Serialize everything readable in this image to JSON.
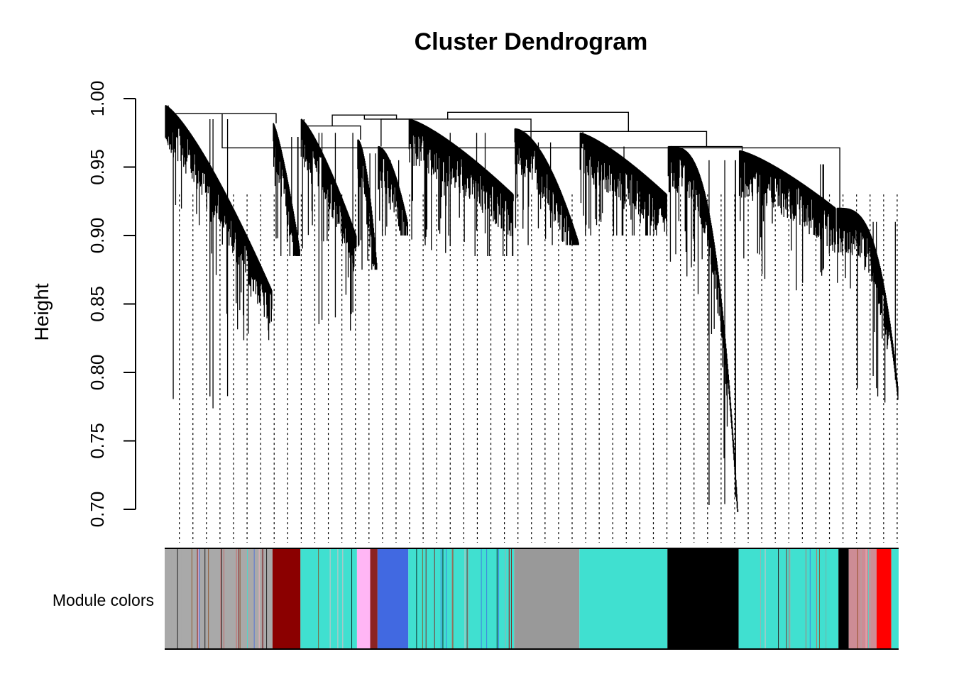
{
  "chart_data": {
    "type": "dendrogram",
    "title": "Cluster Dendrogram",
    "ylabel": "Height",
    "xlabel": "",
    "ylim": [
      0.7,
      1.0
    ],
    "yticks": [
      "0.70",
      "0.75",
      "0.80",
      "0.85",
      "0.90",
      "0.95",
      "1.00"
    ],
    "color_band_label": "Module colors",
    "clusters": [
      {
        "name": "grey-mixed",
        "start": 0.0,
        "end": 0.147,
        "top": 0.995,
        "bottom": 0.86,
        "min_leaf": 0.765,
        "decay": "gradual"
      },
      {
        "name": "darkred",
        "start": 0.147,
        "end": 0.185,
        "top": 0.982,
        "bottom": 0.89,
        "min_leaf": 0.885,
        "decay": "gradual"
      },
      {
        "name": "turquoise-a",
        "start": 0.185,
        "end": 0.262,
        "top": 0.985,
        "bottom": 0.9,
        "min_leaf": 0.826,
        "decay": "gradual"
      },
      {
        "name": "pink-brown",
        "start": 0.262,
        "end": 0.29,
        "top": 0.97,
        "bottom": 0.88,
        "min_leaf": 0.875,
        "decay": "steep"
      },
      {
        "name": "royalblue",
        "start": 0.29,
        "end": 0.332,
        "top": 0.965,
        "bottom": 0.91,
        "min_leaf": 0.9,
        "decay": "steep"
      },
      {
        "name": "turquoise-b",
        "start": 0.332,
        "end": 0.476,
        "top": 0.985,
        "bottom": 0.93,
        "min_leaf": 0.885,
        "decay": "gradual"
      },
      {
        "name": "grey",
        "start": 0.476,
        "end": 0.565,
        "top": 0.978,
        "bottom": 0.895,
        "min_leaf": 0.893,
        "decay": "steep"
      },
      {
        "name": "turquoise-c",
        "start": 0.565,
        "end": 0.685,
        "top": 0.975,
        "bottom": 0.93,
        "min_leaf": 0.9,
        "decay": "gradual"
      },
      {
        "name": "black",
        "start": 0.685,
        "end": 0.782,
        "top": 0.965,
        "bottom": 0.7,
        "min_leaf": 0.698,
        "decay": "curve"
      },
      {
        "name": "turquoise-d",
        "start": 0.782,
        "end": 0.915,
        "top": 0.962,
        "bottom": 0.92,
        "min_leaf": 0.86,
        "decay": "gradual"
      },
      {
        "name": "red-tail",
        "start": 0.915,
        "end": 1.0,
        "top": 0.92,
        "bottom": 0.79,
        "min_leaf": 0.778,
        "decay": "curve"
      }
    ],
    "merges": [
      {
        "left": 0,
        "right": 1,
        "height": 0.989
      },
      {
        "left": 2,
        "right": 3,
        "height": 0.98
      },
      {
        "left": 4,
        "right": 5,
        "height": 0.985
      },
      {
        "left": 6,
        "right": 7,
        "height": 0.976
      },
      {
        "left": 8,
        "right": 9,
        "height": 0.965
      },
      {
        "left": 10,
        "right": 11,
        "height": 0.964
      },
      {
        "left": 12,
        "right": 13,
        "height": 0.988
      },
      {
        "left": 14,
        "right": 15,
        "height": 0.976
      },
      {
        "left": 16,
        "right": 17,
        "height": 0.985
      },
      {
        "left": 18,
        "right": 19,
        "height": 0.99
      }
    ],
    "module_colors": [
      {
        "color": "#a9a9a9",
        "start": 0.0,
        "end": 0.147,
        "mixed": true
      },
      {
        "color": "#8b0000",
        "start": 0.147,
        "end": 0.185
      },
      {
        "color": "#40e0d0",
        "start": 0.185,
        "end": 0.262,
        "mixed": true
      },
      {
        "color": "#ffb6f5",
        "start": 0.262,
        "end": 0.28
      },
      {
        "color": "#8b2323",
        "start": 0.28,
        "end": 0.29
      },
      {
        "color": "#4169e1",
        "start": 0.29,
        "end": 0.332
      },
      {
        "color": "#40e0d0",
        "start": 0.332,
        "end": 0.476,
        "mixed": true
      },
      {
        "color": "#999999",
        "start": 0.476,
        "end": 0.565
      },
      {
        "color": "#40e0d0",
        "start": 0.565,
        "end": 0.685
      },
      {
        "color": "#000000",
        "start": 0.685,
        "end": 0.782
      },
      {
        "color": "#40e0d0",
        "start": 0.782,
        "end": 0.918,
        "mixed": true
      },
      {
        "color": "#000000",
        "start": 0.918,
        "end": 0.932
      },
      {
        "color": "#cd8c95",
        "start": 0.932,
        "end": 0.97,
        "mixed": true
      },
      {
        "color": "#ff0000",
        "start": 0.97,
        "end": 0.99
      },
      {
        "color": "#40e0d0",
        "start": 0.99,
        "end": 1.0
      }
    ],
    "colors": {
      "line": "#000000",
      "background": "#ffffff"
    }
  }
}
